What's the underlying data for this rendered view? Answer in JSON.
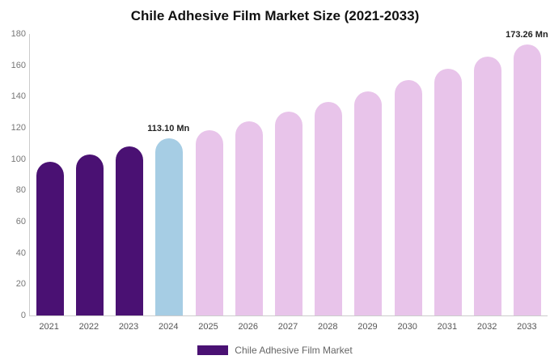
{
  "chart_data": {
    "type": "bar",
    "title": "Chile Adhesive Film Market Size (2021-2033)",
    "xlabel": "",
    "ylabel": "",
    "categories": [
      "2021",
      "2022",
      "2023",
      "2024",
      "2025",
      "2026",
      "2027",
      "2028",
      "2029",
      "2030",
      "2031",
      "2032",
      "2033"
    ],
    "values": [
      98.1,
      102.9,
      107.9,
      113.1,
      118.6,
      124.4,
      130.4,
      136.8,
      143.4,
      150.4,
      157.7,
      165.4,
      173.26
    ],
    "bar_colors": [
      "#4a1173",
      "#4a1173",
      "#4a1173",
      "#a6cde4",
      "#e8c4ea",
      "#e8c4ea",
      "#e8c4ea",
      "#e8c4ea",
      "#e8c4ea",
      "#e8c4ea",
      "#e8c4ea",
      "#e8c4ea",
      "#e8c4ea"
    ],
    "annotations": [
      {
        "index": 3,
        "text": "113.10 Mn"
      },
      {
        "index": 12,
        "text": "173.26 Mn"
      }
    ],
    "ylim": [
      0,
      180
    ],
    "yticks": [
      0,
      20,
      40,
      60,
      80,
      100,
      120,
      140,
      160,
      180
    ],
    "grid": false,
    "legend_position": "bottom",
    "legend": [
      {
        "label": "Chile Adhesive Film Market",
        "color": "#4a1173"
      }
    ]
  }
}
